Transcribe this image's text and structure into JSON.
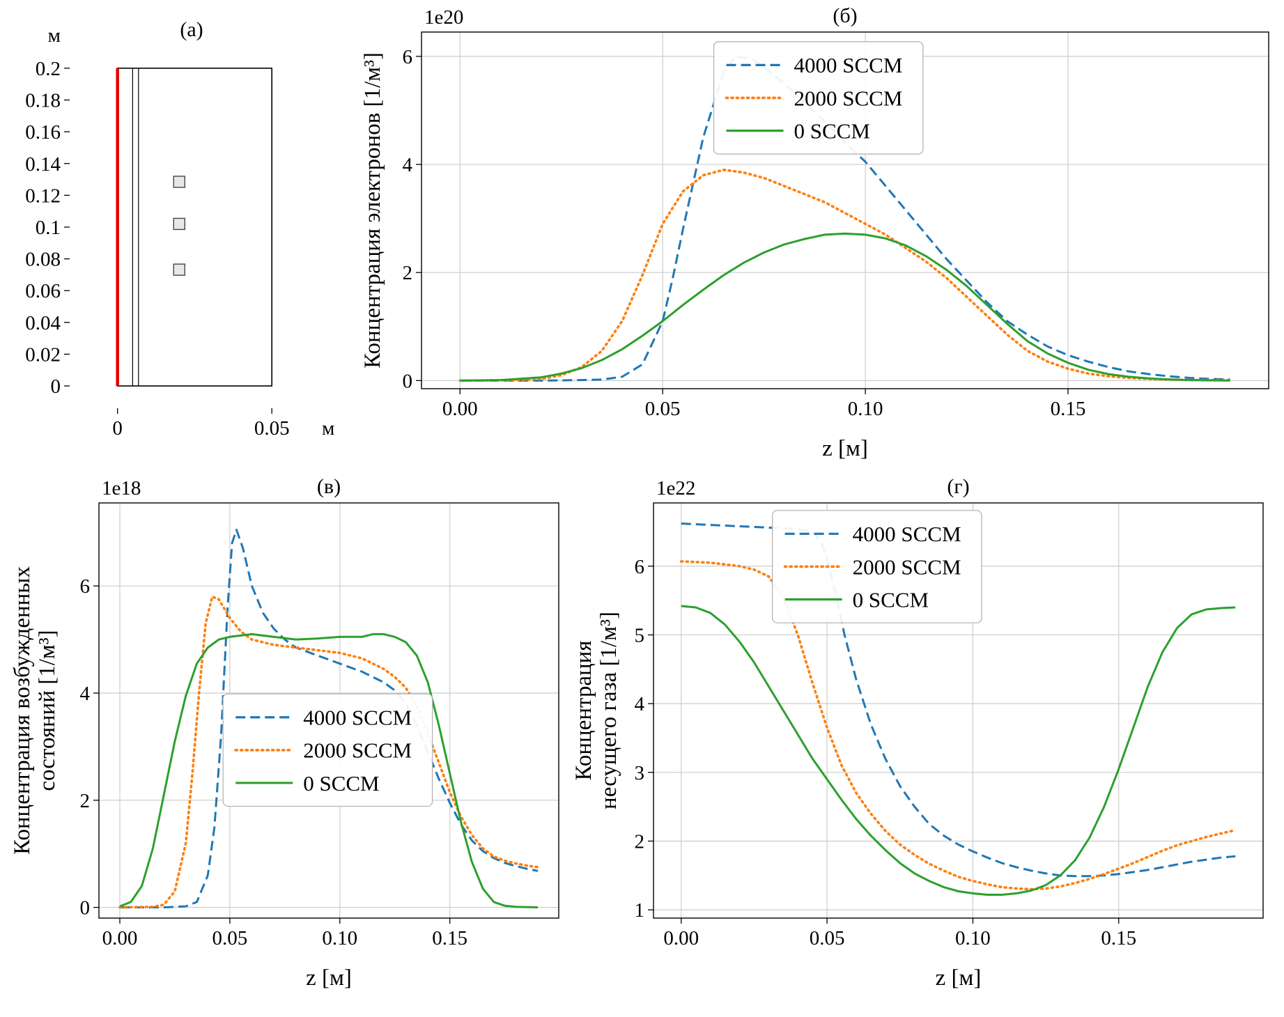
{
  "colors": {
    "series_4000": "#1f77b4",
    "series_2000": "#ff7f0e",
    "series_0": "#2ca02c",
    "geometry_wall": "#e60000",
    "grid": "#cccccc"
  },
  "chart_data": [
    {
      "id": "a",
      "type": "geometry",
      "title": "(а)",
      "x_unit": "м",
      "y_unit": "м",
      "xlim": [
        -0.0155,
        0.0635
      ],
      "ylim": [
        -0.014,
        0.214
      ],
      "xticks": [
        0,
        0.05
      ],
      "xtick_labels": [
        "0",
        "0.05"
      ],
      "yticks": [
        0,
        0.02,
        0.04,
        0.06,
        0.08,
        0.1,
        0.12,
        0.14,
        0.16,
        0.18,
        0.2
      ],
      "ytick_labels": [
        "0",
        "0.02",
        "0.04",
        "0.06",
        "0.08",
        "0.1",
        "0.12",
        "0.14",
        "0.16",
        "0.18",
        "0.2"
      ],
      "shapes": {
        "wall_line": {
          "x": 0,
          "y0": 0,
          "y1": 0.2,
          "color": "#e60000"
        },
        "outer_rectangle": {
          "x0": 0,
          "y0": 0,
          "x1": 0.05,
          "y1": 0.2
        },
        "tube_wall_lines_x": [
          0.0049,
          0.0068
        ],
        "probe_squares": {
          "cx": 0.02,
          "cy": [
            0.0732,
            0.102,
            0.1285
          ]
        }
      }
    },
    {
      "id": "b",
      "type": "line",
      "title": "(б)",
      "offset_text": "1e20",
      "xlabel": "z [м]",
      "ylabel_lines": [
        "Концентрация электронов [1/м³]"
      ],
      "xlim": [
        -0.0095,
        0.1995
      ],
      "ylim": [
        -0.15,
        6.45
      ],
      "xticks": [
        0,
        0.05,
        0.1,
        0.15
      ],
      "xtick_labels": [
        "0.00",
        "0.05",
        "0.10",
        "0.15"
      ],
      "yticks": [
        0,
        2,
        4,
        6
      ],
      "ytick_labels": [
        "0",
        "2",
        "4",
        "6"
      ],
      "grid": true,
      "legend": {
        "fx": 0.345,
        "fy": 0.027
      },
      "series": [
        {
          "name": "4000 SCCM",
          "color": "#1f77b4",
          "style": "dashed",
          "x": [
            0,
            0.02,
            0.03,
            0.035,
            0.04,
            0.045,
            0.05,
            0.0525,
            0.055,
            0.06,
            0.065,
            0.068,
            0.072,
            0.075,
            0.08,
            0.085,
            0.09,
            0.095,
            0.1,
            0.105,
            0.11,
            0.115,
            0.12,
            0.125,
            0.13,
            0.135,
            0.14,
            0.145,
            0.15,
            0.155,
            0.16,
            0.165,
            0.17,
            0.175,
            0.18,
            0.185,
            0.19
          ],
          "y": [
            0,
            0,
            0.01,
            0.02,
            0.07,
            0.3,
            1.1,
            1.9,
            2.8,
            4.5,
            5.7,
            6.0,
            5.95,
            5.8,
            5.5,
            5.15,
            4.8,
            4.4,
            4.05,
            3.6,
            3.15,
            2.7,
            2.25,
            1.85,
            1.45,
            1.1,
            0.85,
            0.63,
            0.47,
            0.35,
            0.25,
            0.17,
            0.12,
            0.08,
            0.05,
            0.03,
            0.02
          ]
        },
        {
          "name": "2000 SCCM",
          "color": "#ff7f0e",
          "style": "dotted",
          "x": [
            0,
            0.015,
            0.02,
            0.025,
            0.03,
            0.035,
            0.04,
            0.045,
            0.05,
            0.055,
            0.06,
            0.065,
            0.07,
            0.075,
            0.08,
            0.085,
            0.09,
            0.095,
            0.1,
            0.105,
            0.11,
            0.115,
            0.12,
            0.125,
            0.13,
            0.135,
            0.14,
            0.145,
            0.15,
            0.155,
            0.16,
            0.165,
            0.17,
            0.18,
            0.19
          ],
          "y": [
            0,
            0.01,
            0.03,
            0.1,
            0.25,
            0.55,
            1.1,
            1.95,
            2.9,
            3.5,
            3.8,
            3.9,
            3.85,
            3.75,
            3.6,
            3.45,
            3.3,
            3.1,
            2.9,
            2.7,
            2.45,
            2.2,
            1.9,
            1.55,
            1.2,
            0.85,
            0.55,
            0.35,
            0.22,
            0.13,
            0.08,
            0.05,
            0.03,
            0.01,
            0.01
          ]
        },
        {
          "name": "0 SCCM",
          "color": "#2ca02c",
          "style": "solid",
          "x": [
            0,
            0.01,
            0.02,
            0.025,
            0.03,
            0.035,
            0.04,
            0.045,
            0.05,
            0.055,
            0.06,
            0.065,
            0.07,
            0.075,
            0.08,
            0.085,
            0.09,
            0.095,
            0.1,
            0.105,
            0.11,
            0.115,
            0.12,
            0.125,
            0.13,
            0.135,
            0.14,
            0.145,
            0.15,
            0.155,
            0.16,
            0.165,
            0.17,
            0.175,
            0.18,
            0.19
          ],
          "y": [
            0,
            0.01,
            0.06,
            0.13,
            0.23,
            0.38,
            0.58,
            0.83,
            1.1,
            1.4,
            1.68,
            1.95,
            2.18,
            2.37,
            2.52,
            2.62,
            2.7,
            2.72,
            2.7,
            2.63,
            2.5,
            2.3,
            2.05,
            1.75,
            1.4,
            1.05,
            0.73,
            0.5,
            0.33,
            0.2,
            0.12,
            0.07,
            0.04,
            0.02,
            0.01,
            0
          ]
        }
      ]
    },
    {
      "id": "v",
      "type": "line",
      "title": "(в)",
      "offset_text": "1e18",
      "xlabel": "z [м]",
      "ylabel_lines": [
        "Концентрация возбужденных",
        "состояний [1/м³]"
      ],
      "xlim": [
        -0.0095,
        0.1995
      ],
      "ylim": [
        -0.2,
        7.55
      ],
      "xticks": [
        0,
        0.05,
        0.1,
        0.15
      ],
      "xtick_labels": [
        "0.00",
        "0.05",
        "0.10",
        "0.15"
      ],
      "yticks": [
        0,
        2,
        4,
        6
      ],
      "ytick_labels": [
        "0",
        "2",
        "4",
        "6"
      ],
      "grid": true,
      "legend": {
        "fx": 0.27,
        "fy": 0.46
      },
      "series": [
        {
          "name": "4000 SCCM",
          "color": "#1f77b4",
          "style": "dashed",
          "x": [
            0,
            0.02,
            0.03,
            0.035,
            0.04,
            0.043,
            0.046,
            0.049,
            0.051,
            0.053,
            0.056,
            0.06,
            0.065,
            0.07,
            0.075,
            0.08,
            0.09,
            0.1,
            0.11,
            0.12,
            0.125,
            0.13,
            0.135,
            0.14,
            0.145,
            0.15,
            0.155,
            0.16,
            0.165,
            0.17,
            0.175,
            0.18,
            0.185,
            0.19
          ],
          "y": [
            0,
            0,
            0.02,
            0.1,
            0.6,
            1.5,
            3.2,
            5.6,
            6.8,
            7.05,
            6.7,
            6.0,
            5.5,
            5.2,
            5.0,
            4.85,
            4.7,
            4.55,
            4.4,
            4.2,
            4.05,
            3.8,
            3.4,
            2.9,
            2.4,
            1.95,
            1.55,
            1.25,
            1.05,
            0.92,
            0.83,
            0.77,
            0.72,
            0.68
          ]
        },
        {
          "name": "2000 SCCM",
          "color": "#ff7f0e",
          "style": "dotted",
          "x": [
            0,
            0.015,
            0.02,
            0.025,
            0.03,
            0.033,
            0.036,
            0.039,
            0.042,
            0.045,
            0.05,
            0.055,
            0.06,
            0.07,
            0.08,
            0.09,
            0.1,
            0.105,
            0.11,
            0.115,
            0.12,
            0.125,
            0.13,
            0.135,
            0.14,
            0.145,
            0.15,
            0.155,
            0.16,
            0.165,
            0.17,
            0.175,
            0.18,
            0.185,
            0.19
          ],
          "y": [
            0,
            0.01,
            0.05,
            0.3,
            1.2,
            2.5,
            4.0,
            5.3,
            5.8,
            5.75,
            5.4,
            5.15,
            5.0,
            4.9,
            4.85,
            4.8,
            4.75,
            4.7,
            4.65,
            4.55,
            4.45,
            4.3,
            4.1,
            3.75,
            3.25,
            2.7,
            2.15,
            1.7,
            1.35,
            1.1,
            0.95,
            0.87,
            0.82,
            0.78,
            0.75
          ]
        },
        {
          "name": "0 SCCM",
          "color": "#2ca02c",
          "style": "solid",
          "x": [
            0,
            0.005,
            0.01,
            0.015,
            0.02,
            0.025,
            0.03,
            0.035,
            0.04,
            0.045,
            0.05,
            0.06,
            0.07,
            0.08,
            0.09,
            0.1,
            0.11,
            0.115,
            0.12,
            0.125,
            0.13,
            0.135,
            0.14,
            0.145,
            0.15,
            0.155,
            0.16,
            0.165,
            0.17,
            0.175,
            0.18,
            0.19
          ],
          "y": [
            0.02,
            0.1,
            0.4,
            1.1,
            2.1,
            3.1,
            3.95,
            4.55,
            4.85,
            5.0,
            5.05,
            5.1,
            5.05,
            5.0,
            5.02,
            5.05,
            5.05,
            5.1,
            5.1,
            5.05,
            4.95,
            4.7,
            4.2,
            3.4,
            2.5,
            1.6,
            0.85,
            0.35,
            0.1,
            0.03,
            0.01,
            0
          ]
        }
      ]
    },
    {
      "id": "g",
      "type": "line",
      "title": "(г)",
      "offset_text": "1e22",
      "xlabel": "z [м]",
      "ylabel_lines": [
        "Концентрация",
        "несущего газа [1/м³]"
      ],
      "xlim": [
        -0.0095,
        0.1995
      ],
      "ylim": [
        0.88,
        6.92
      ],
      "xticks": [
        0,
        0.05,
        0.1,
        0.15
      ],
      "xtick_labels": [
        "0.00",
        "0.05",
        "0.10",
        "0.15"
      ],
      "yticks": [
        1,
        2,
        3,
        4,
        5,
        6
      ],
      "ytick_labels": [
        "1",
        "2",
        "3",
        "4",
        "5",
        "6"
      ],
      "grid": true,
      "legend": {
        "fx": 0.195,
        "fy": 0.018
      },
      "series": [
        {
          "name": "4000 SCCM",
          "color": "#1f77b4",
          "style": "dashed",
          "x": [
            0,
            0.01,
            0.02,
            0.03,
            0.04,
            0.045,
            0.048,
            0.05,
            0.053,
            0.056,
            0.06,
            0.065,
            0.07,
            0.075,
            0.08,
            0.085,
            0.09,
            0.095,
            0.1,
            0.105,
            0.11,
            0.115,
            0.12,
            0.125,
            0.13,
            0.135,
            0.14,
            0.145,
            0.15,
            0.155,
            0.16,
            0.165,
            0.17,
            0.175,
            0.18,
            0.185,
            0.19
          ],
          "y": [
            6.62,
            6.6,
            6.58,
            6.56,
            6.54,
            6.5,
            6.35,
            6.1,
            5.6,
            5.0,
            4.35,
            3.7,
            3.2,
            2.8,
            2.5,
            2.25,
            2.08,
            1.95,
            1.85,
            1.76,
            1.68,
            1.62,
            1.57,
            1.53,
            1.5,
            1.49,
            1.49,
            1.5,
            1.52,
            1.55,
            1.58,
            1.62,
            1.66,
            1.7,
            1.73,
            1.76,
            1.78
          ]
        },
        {
          "name": "2000 SCCM",
          "color": "#ff7f0e",
          "style": "dotted",
          "x": [
            0,
            0.01,
            0.02,
            0.025,
            0.03,
            0.035,
            0.04,
            0.045,
            0.05,
            0.055,
            0.06,
            0.065,
            0.07,
            0.075,
            0.08,
            0.085,
            0.09,
            0.095,
            0.1,
            0.105,
            0.11,
            0.115,
            0.12,
            0.125,
            0.13,
            0.135,
            0.14,
            0.145,
            0.15,
            0.155,
            0.16,
            0.165,
            0.17,
            0.175,
            0.18,
            0.185,
            0.19
          ],
          "y": [
            6.07,
            6.05,
            6.0,
            5.95,
            5.85,
            5.55,
            5.0,
            4.3,
            3.65,
            3.1,
            2.7,
            2.4,
            2.15,
            1.95,
            1.8,
            1.67,
            1.57,
            1.48,
            1.42,
            1.37,
            1.33,
            1.31,
            1.3,
            1.31,
            1.34,
            1.39,
            1.45,
            1.52,
            1.6,
            1.68,
            1.77,
            1.86,
            1.94,
            2.0,
            2.06,
            2.11,
            2.16
          ]
        },
        {
          "name": "0 SCCM",
          "color": "#2ca02c",
          "style": "solid",
          "x": [
            0,
            0.005,
            0.01,
            0.015,
            0.02,
            0.025,
            0.03,
            0.035,
            0.04,
            0.045,
            0.05,
            0.055,
            0.06,
            0.065,
            0.07,
            0.075,
            0.08,
            0.085,
            0.09,
            0.095,
            0.1,
            0.105,
            0.11,
            0.115,
            0.12,
            0.125,
            0.13,
            0.135,
            0.14,
            0.145,
            0.15,
            0.155,
            0.16,
            0.165,
            0.17,
            0.175,
            0.18,
            0.185,
            0.19
          ],
          "y": [
            5.42,
            5.4,
            5.32,
            5.15,
            4.9,
            4.6,
            4.25,
            3.9,
            3.55,
            3.2,
            2.9,
            2.6,
            2.32,
            2.08,
            1.87,
            1.68,
            1.53,
            1.42,
            1.33,
            1.27,
            1.24,
            1.22,
            1.22,
            1.24,
            1.28,
            1.36,
            1.5,
            1.72,
            2.05,
            2.5,
            3.05,
            3.65,
            4.25,
            4.75,
            5.1,
            5.3,
            5.37,
            5.39,
            5.4
          ]
        }
      ]
    }
  ]
}
